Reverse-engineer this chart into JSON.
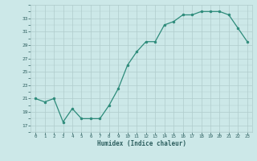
{
  "x": [
    0,
    1,
    2,
    3,
    4,
    5,
    6,
    7,
    8,
    9,
    10,
    11,
    12,
    13,
    14,
    15,
    16,
    17,
    18,
    19,
    20,
    21,
    22,
    23
  ],
  "y": [
    21,
    20.5,
    21,
    17.5,
    19.5,
    18,
    18,
    18,
    20,
    22.5,
    26,
    28,
    29.5,
    29.5,
    32,
    32.5,
    33.5,
    33.5,
    34,
    34,
    34,
    33.5,
    31.5,
    29.5
  ],
  "line_color": "#2d8b7a",
  "marker_color": "#2d8b7a",
  "bg_color": "#cce8e8",
  "grid_color": "#b0cccc",
  "xlabel": "Humidex (Indice chaleur)",
  "xlim": [
    -0.5,
    23.5
  ],
  "ylim": [
    16,
    35
  ],
  "yticks": [
    17,
    19,
    21,
    23,
    25,
    27,
    29,
    31,
    33
  ],
  "xticks": [
    0,
    1,
    2,
    3,
    4,
    5,
    6,
    7,
    8,
    9,
    10,
    11,
    12,
    13,
    14,
    15,
    16,
    17,
    18,
    19,
    20,
    21,
    22,
    23
  ],
  "font_color": "#2d5f5f",
  "font_family": "monospace"
}
